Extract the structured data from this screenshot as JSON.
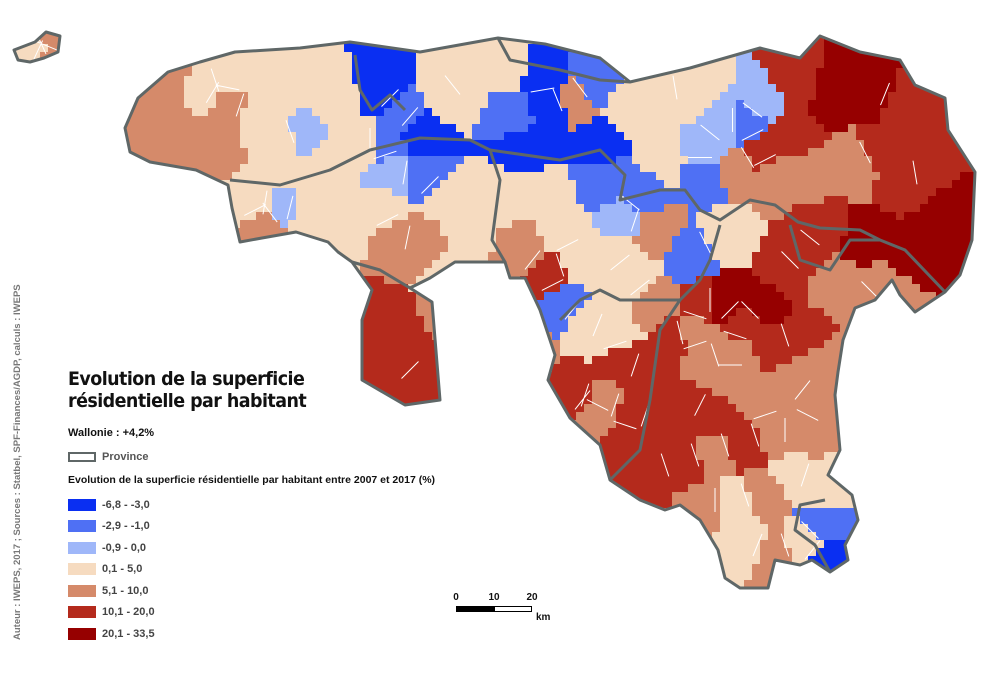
{
  "title": {
    "line1": "Evolution de la superficie",
    "line2": "résidentielle par habitant"
  },
  "wallonie": "Wallonie : +4,2%",
  "province_label": "Province",
  "legend": {
    "heading": "Evolution de la superficie résidentielle par habitant entre 2007 et 2017 (%)",
    "classes": [
      {
        "label": "-6,8 - -3,0",
        "color": "#0a2ff2"
      },
      {
        "label": "-2,9 - -1,0",
        "color": "#4f70f4"
      },
      {
        "label": "-0,9 - 0,0",
        "color": "#9fb7f9"
      },
      {
        "label": "0,1 - 5,0",
        "color": "#f6dbc0"
      },
      {
        "label": "5,1 - 10,0",
        "color": "#d58a6a"
      },
      {
        "label": "10,1 - 20,0",
        "color": "#b42a1c"
      },
      {
        "label": "20,1 - 33,5",
        "color": "#960000"
      }
    ]
  },
  "colors": {
    "province_border": "#5f6767",
    "municipality_border": "#ffffff"
  },
  "scale": {
    "ticks": [
      "0",
      "10",
      "20"
    ],
    "unit": "km"
  },
  "credit": "Auteur : IWEPS, 2017 ; Sources : Statbel, SPF-Finances/AGDP, calculs : IWEPS"
}
